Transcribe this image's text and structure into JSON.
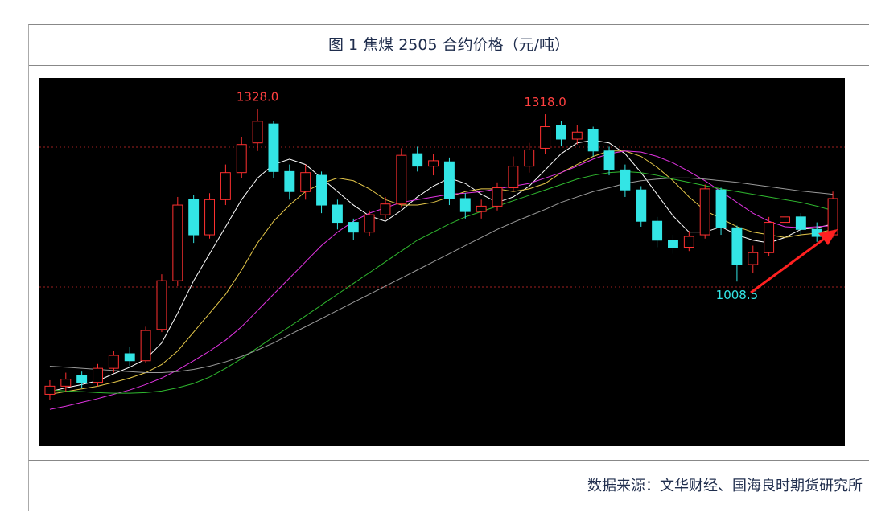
{
  "chart_data": {
    "type": "candlestick",
    "title": "图 1  焦煤 2505 合约价格（元/吨）",
    "source": "数据来源：文华财经、国海良时期货研究所",
    "ylim": [
      704,
      1385
    ],
    "up_color": "#ff3030",
    "down_color": "#33e5e5",
    "open": [
      800,
      815,
      835,
      822,
      848,
      875,
      862,
      920,
      1010,
      1160,
      1095,
      1160,
      1210,
      1265,
      1300,
      1212,
      1175,
      1205,
      1150,
      1118,
      1100,
      1132,
      1152,
      1245,
      1222,
      1230,
      1162,
      1138,
      1148,
      1182,
      1222,
      1255,
      1298,
      1272,
      1290,
      1250,
      1215,
      1178,
      1120,
      1085,
      1072,
      1095,
      1178,
      1108,
      1040,
      1062,
      1118,
      1128,
      1105,
      1095
    ],
    "high": [
      826,
      840,
      842,
      856,
      880,
      888,
      925,
      1022,
      1165,
      1168,
      1172,
      1225,
      1275,
      1328,
      1305,
      1225,
      1225,
      1212,
      1160,
      1125,
      1140,
      1165,
      1255,
      1258,
      1245,
      1238,
      1172,
      1160,
      1192,
      1240,
      1265,
      1318,
      1305,
      1298,
      1295,
      1258,
      1225,
      1185,
      1128,
      1095,
      1102,
      1188,
      1182,
      1112,
      1075,
      1128,
      1140,
      1135,
      1118,
      1175
    ],
    "low": [
      790,
      805,
      812,
      815,
      840,
      852,
      858,
      915,
      1000,
      1080,
      1088,
      1150,
      1200,
      1250,
      1200,
      1160,
      1160,
      1135,
      1105,
      1085,
      1092,
      1125,
      1145,
      1212,
      1205,
      1150,
      1125,
      1125,
      1140,
      1175,
      1210,
      1245,
      1260,
      1262,
      1240,
      1205,
      1165,
      1110,
      1072,
      1060,
      1065,
      1088,
      1095,
      1008.5,
      1025,
      1055,
      1105,
      1095,
      1082,
      1090
    ],
    "close": [
      815,
      828,
      822,
      848,
      872,
      862,
      918,
      1010,
      1150,
      1095,
      1160,
      1210,
      1262,
      1305,
      1212,
      1175,
      1210,
      1150,
      1118,
      1100,
      1132,
      1152,
      1242,
      1222,
      1232,
      1162,
      1138,
      1148,
      1182,
      1222,
      1252,
      1295,
      1272,
      1285,
      1250,
      1215,
      1178,
      1120,
      1085,
      1072,
      1092,
      1180,
      1108,
      1040,
      1062,
      1118,
      1128,
      1105,
      1092,
      1162
    ],
    "ma_lines": [
      {
        "color": "#ffffff",
        "values": [
          805,
          812,
          818,
          825,
          838,
          850,
          865,
          895,
          950,
          1010,
          1060,
          1110,
          1160,
          1200,
          1225,
          1235,
          1225,
          1200,
          1175,
          1150,
          1130,
          1120,
          1140,
          1165,
          1185,
          1200,
          1190,
          1170,
          1155,
          1165,
          1185,
          1215,
          1245,
          1265,
          1270,
          1265,
          1245,
          1210,
          1170,
          1130,
          1100,
          1100,
          1110,
          1095,
          1085,
          1080,
          1090,
          1105,
          1108,
          1115
        ]
      },
      {
        "color": "#e6c84a",
        "values": [
          800,
          805,
          810,
          815,
          822,
          830,
          840,
          855,
          880,
          915,
          950,
          985,
          1030,
          1080,
          1120,
          1150,
          1175,
          1190,
          1200,
          1195,
          1180,
          1160,
          1150,
          1150,
          1155,
          1165,
          1175,
          1180,
          1180,
          1175,
          1180,
          1190,
          1210,
          1225,
          1240,
          1250,
          1250,
          1240,
          1220,
          1195,
          1165,
          1140,
          1125,
          1110,
          1100,
          1095,
          1090,
          1095,
          1098,
          1105
        ]
      },
      {
        "color": "#e033e0",
        "values": [
          772,
          778,
          785,
          792,
          800,
          808,
          818,
          830,
          845,
          862,
          880,
          900,
          925,
          955,
          985,
          1015,
          1045,
          1075,
          1100,
          1120,
          1135,
          1145,
          1155,
          1160,
          1165,
          1170,
          1172,
          1175,
          1180,
          1185,
          1190,
          1200,
          1210,
          1222,
          1235,
          1245,
          1250,
          1248,
          1240,
          1228,
          1212,
          1195,
          1175,
          1155,
          1135,
          1120,
          1110,
          1108,
          1110,
          1112
        ]
      },
      {
        "color": "#2fb82f",
        "values": [
          808,
          806,
          805,
          803,
          802,
          802,
          803,
          806,
          812,
          820,
          832,
          848,
          866,
          886,
          906,
          925,
          945,
          965,
          985,
          1005,
          1025,
          1045,
          1065,
          1085,
          1100,
          1115,
          1128,
          1138,
          1148,
          1158,
          1168,
          1178,
          1188,
          1198,
          1205,
          1210,
          1212,
          1210,
          1205,
          1198,
          1192,
          1186,
          1180,
          1175,
          1170,
          1165,
          1160,
          1155,
          1148,
          1140
        ]
      },
      {
        "color": "#9a9a9a",
        "values": [
          852,
          850,
          848,
          846,
          844,
          842,
          840,
          840,
          842,
          846,
          852,
          860,
          870,
          882,
          895,
          910,
          925,
          940,
          955,
          970,
          985,
          1000,
          1015,
          1030,
          1045,
          1060,
          1075,
          1090,
          1105,
          1118,
          1130,
          1142,
          1155,
          1165,
          1175,
          1182,
          1190,
          1195,
          1198,
          1200,
          1200,
          1198,
          1195,
          1192,
          1188,
          1184,
          1180,
          1176,
          1173,
          1170
        ]
      }
    ],
    "annotations": [
      {
        "value": 1328,
        "label": "1328.0",
        "color": "#ff4040"
      },
      {
        "value": 1318,
        "label": "1318.0",
        "color": "#ff4040"
      },
      {
        "value": 1008.5,
        "label": "1008.5",
        "color": "#33e5e5"
      }
    ]
  }
}
